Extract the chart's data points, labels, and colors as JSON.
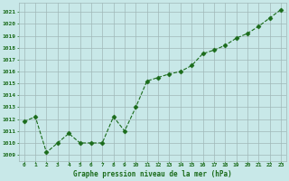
{
  "x": [
    0,
    1,
    2,
    3,
    4,
    5,
    6,
    7,
    8,
    9,
    10,
    11,
    12,
    13,
    14,
    15,
    16,
    17,
    18,
    19,
    20,
    21,
    22,
    23
  ],
  "y": [
    1011.8,
    1012.2,
    1009.2,
    1010.0,
    1010.8,
    1010.0,
    1010.0,
    1010.0,
    1012.2,
    1011.0,
    1013.0,
    1015.2,
    1015.5,
    1015.8,
    1016.0,
    1016.5,
    1017.5,
    1017.8,
    1018.2,
    1018.8,
    1019.2,
    1019.8,
    1020.5,
    1021.2
  ],
  "line_color": "#1a6b1a",
  "marker": "D",
  "marker_size": 2.5,
  "bg_color": "#c8e8e8",
  "grid_color": "#a0b8b8",
  "xlabel": "Graphe pression niveau de la mer (hPa)",
  "xlabel_color": "#1a6b1a",
  "tick_color": "#1a6b1a",
  "ylim": [
    1008.5,
    1021.8
  ],
  "xlim": [
    -0.5,
    23.5
  ],
  "yticks": [
    1009,
    1010,
    1011,
    1012,
    1013,
    1014,
    1015,
    1016,
    1017,
    1018,
    1019,
    1020,
    1021
  ],
  "xticks": [
    0,
    1,
    2,
    3,
    4,
    5,
    6,
    7,
    8,
    9,
    10,
    11,
    12,
    13,
    14,
    15,
    16,
    17,
    18,
    19,
    20,
    21,
    22,
    23
  ],
  "figw": 3.2,
  "figh": 2.0,
  "dpi": 100
}
